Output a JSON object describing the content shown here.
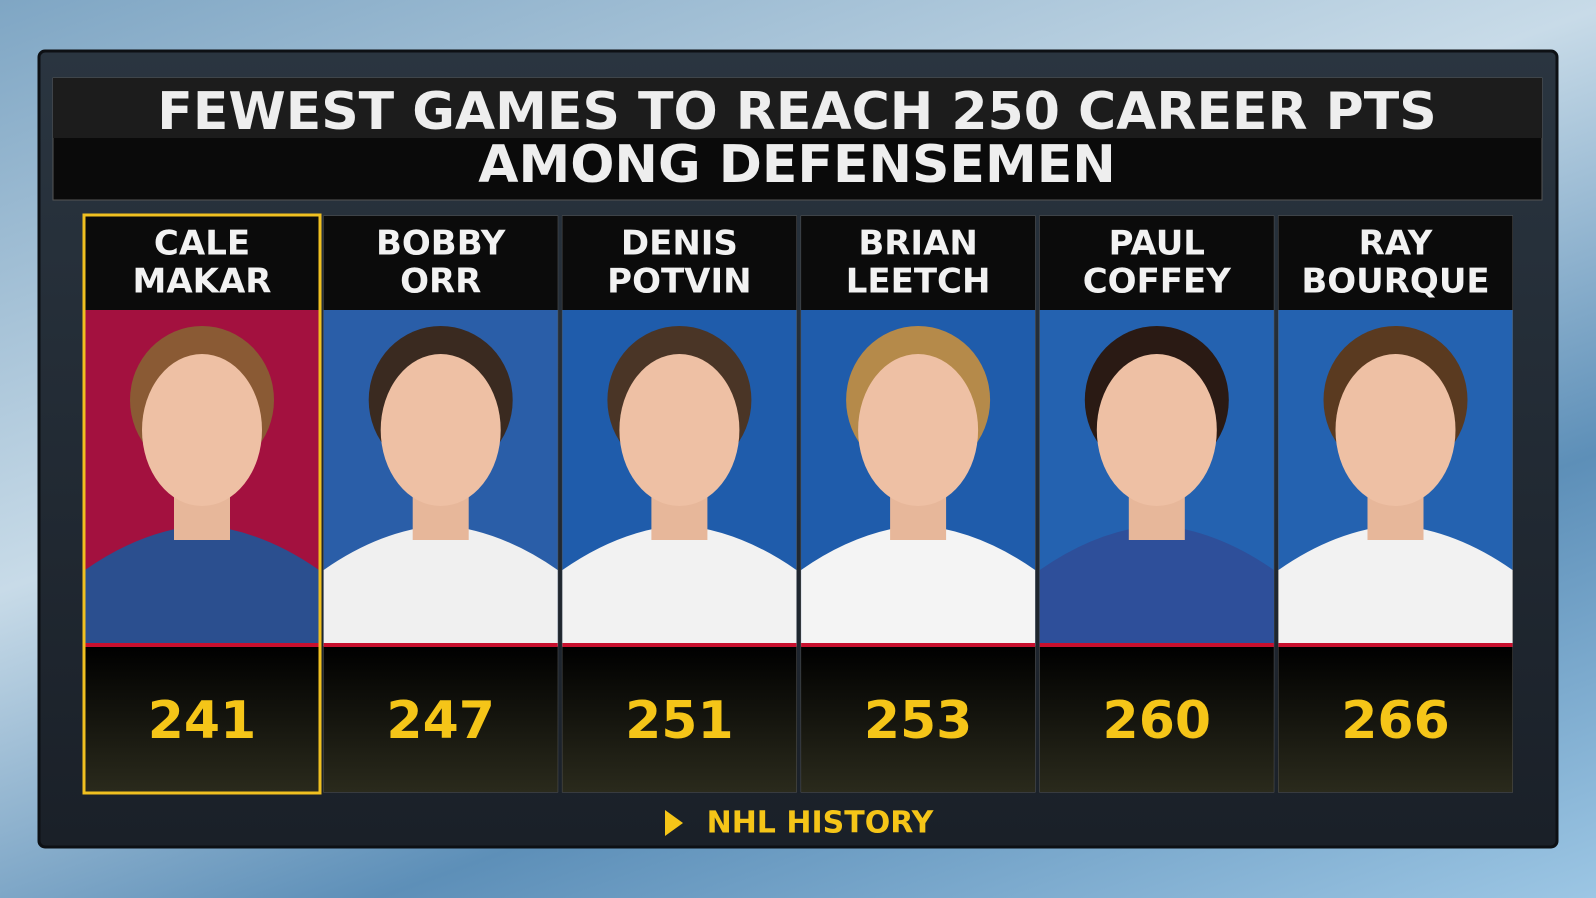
{
  "header": {
    "title": [
      "FEWEST GAMES TO REACH 250 CAREER PTS",
      "AMONG DEFENSEMEN"
    ]
  },
  "cards": [
    {
      "name": [
        "CALE",
        "MAKAR"
      ],
      "value": 241
    },
    {
      "name": [
        "BOBBY",
        "ORR"
      ],
      "value": 247
    },
    {
      "name": [
        "DENIS",
        "POTVIN"
      ],
      "value": 251
    },
    {
      "name": [
        "BRIAN",
        "LEETCH"
      ],
      "value": 253
    },
    {
      "name": [
        "PAUL",
        "COFFEY"
      ],
      "value": 260
    },
    {
      "name": [
        "RAY",
        "BOURQUE"
      ],
      "value": 266
    }
  ],
  "footer": {
    "label": "NHL HISTORY"
  }
}
